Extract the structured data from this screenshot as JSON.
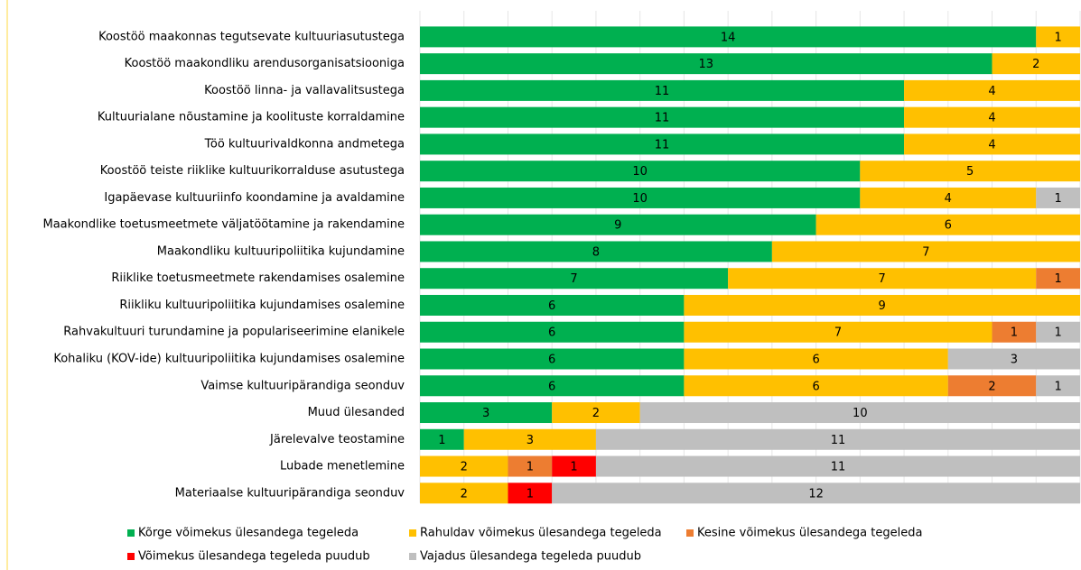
{
  "chart_data": {
    "type": "stacked-bar-horizontal",
    "categories": [
      "Koostöö maakonnas tegutsevate kultuuriasutustega",
      "Koostöö maakondliku arendusorganisatsiooniga",
      "Koostöö linna- ja vallavalitsustega",
      "Kultuurialane nõustamine ja koolituste korraldamine",
      "Töö kultuurivaldkonna andmetega",
      "Koostöö teiste riiklike kultuurikorralduse asutustega",
      "Igapäevase kultuuriinfo koondamine ja avaldamine",
      "Maakondlike toetusmeetmete väljatöötamine ja rakendamine",
      "Maakondliku kultuuripoliitika kujundamine",
      "Riiklike toetusmeetmete rakendamises osalemine",
      "Riikliku kultuuripoliitika kujundamises osalemine",
      "Rahvakultuuri turundamine ja populariseerimine elanikele",
      "Kohaliku (KOV-ide) kultuuripoliitika kujundamises osalemine",
      "Vaimse kultuuripärandiga seonduv",
      "Muud ülesanded",
      "Järelevalve teostamine",
      "Lubade menetlemine",
      "Materiaalse kultuuripärandiga seonduv"
    ],
    "series": [
      {
        "name": "Kõrge võimekus ülesandega tegeleda",
        "color": "#00b050",
        "values": [
          14,
          13,
          11,
          11,
          11,
          10,
          10,
          9,
          8,
          7,
          6,
          6,
          6,
          6,
          3,
          1,
          null,
          null
        ]
      },
      {
        "name": "Rahuldav võimekus ülesandega tegeleda",
        "color": "#ffc000",
        "values": [
          1,
          2,
          4,
          4,
          4,
          5,
          4,
          6,
          7,
          7,
          9,
          7,
          6,
          6,
          2,
          3,
          2,
          2
        ]
      },
      {
        "name": "Kesine võimekus ülesandega tegeleda",
        "color": "#ed7d31",
        "values": [
          null,
          null,
          null,
          null,
          null,
          null,
          null,
          null,
          null,
          1,
          null,
          1,
          null,
          2,
          null,
          null,
          1,
          null
        ]
      },
      {
        "name": "Võimekus ülesandega tegeleda puudub",
        "color": "#ff0000",
        "values": [
          null,
          null,
          null,
          null,
          null,
          null,
          null,
          null,
          null,
          null,
          null,
          null,
          null,
          null,
          null,
          null,
          1,
          1
        ]
      },
      {
        "name": "Vajadus ülesandega tegeleda puudub",
        "color": "#bfbfbf",
        "values": [
          null,
          null,
          null,
          null,
          null,
          null,
          1,
          null,
          null,
          null,
          null,
          1,
          3,
          1,
          10,
          11,
          11,
          12
        ]
      }
    ],
    "xlim": [
      0,
      15
    ],
    "xticks": [
      0,
      1,
      2,
      3,
      4,
      5,
      6,
      7,
      8,
      9,
      10,
      11,
      12,
      13,
      14,
      15
    ],
    "grid": true
  }
}
